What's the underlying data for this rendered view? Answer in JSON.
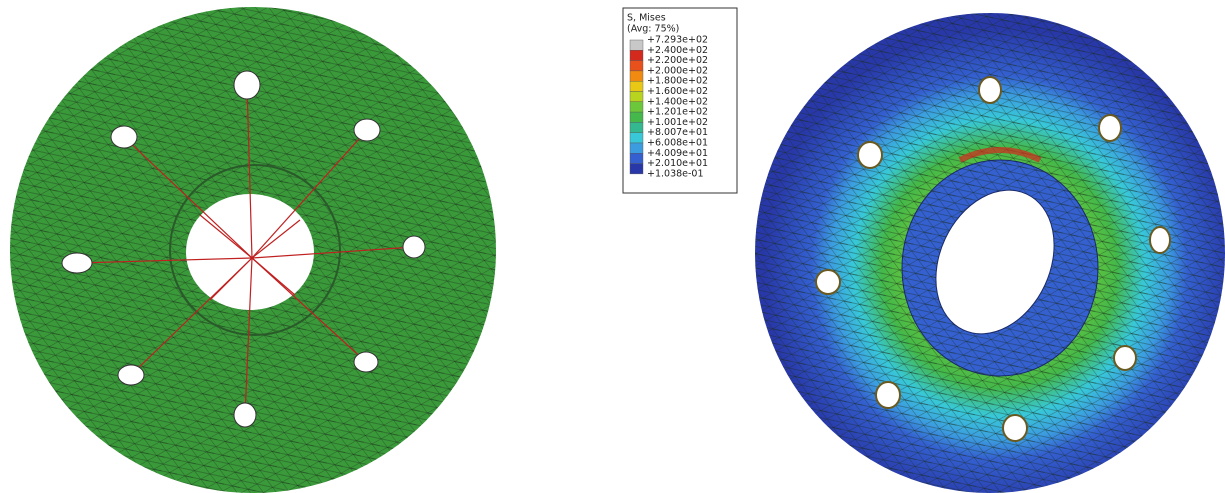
{
  "legend": {
    "title": "S, Mises",
    "subtitle": "(Avg: 75%)",
    "labels": [
      "+7.293e+02",
      "+2.400e+02",
      "+2.200e+02",
      "+2.000e+02",
      "+1.800e+02",
      "+1.600e+02",
      "+1.400e+02",
      "+1.201e+02",
      "+1.001e+02",
      "+8.007e+01",
      "+6.008e+01",
      "+4.009e+01",
      "+2.010e+01",
      "+1.038e-01"
    ],
    "colors": [
      "#c8c8c8",
      "#d42a1e",
      "#e8501c",
      "#f08a10",
      "#e8c814",
      "#b8d41e",
      "#6cc83a",
      "#44b84a",
      "#34b890",
      "#38c8d8",
      "#3c9ce0",
      "#3460d0",
      "#2838a8"
    ]
  }
}
